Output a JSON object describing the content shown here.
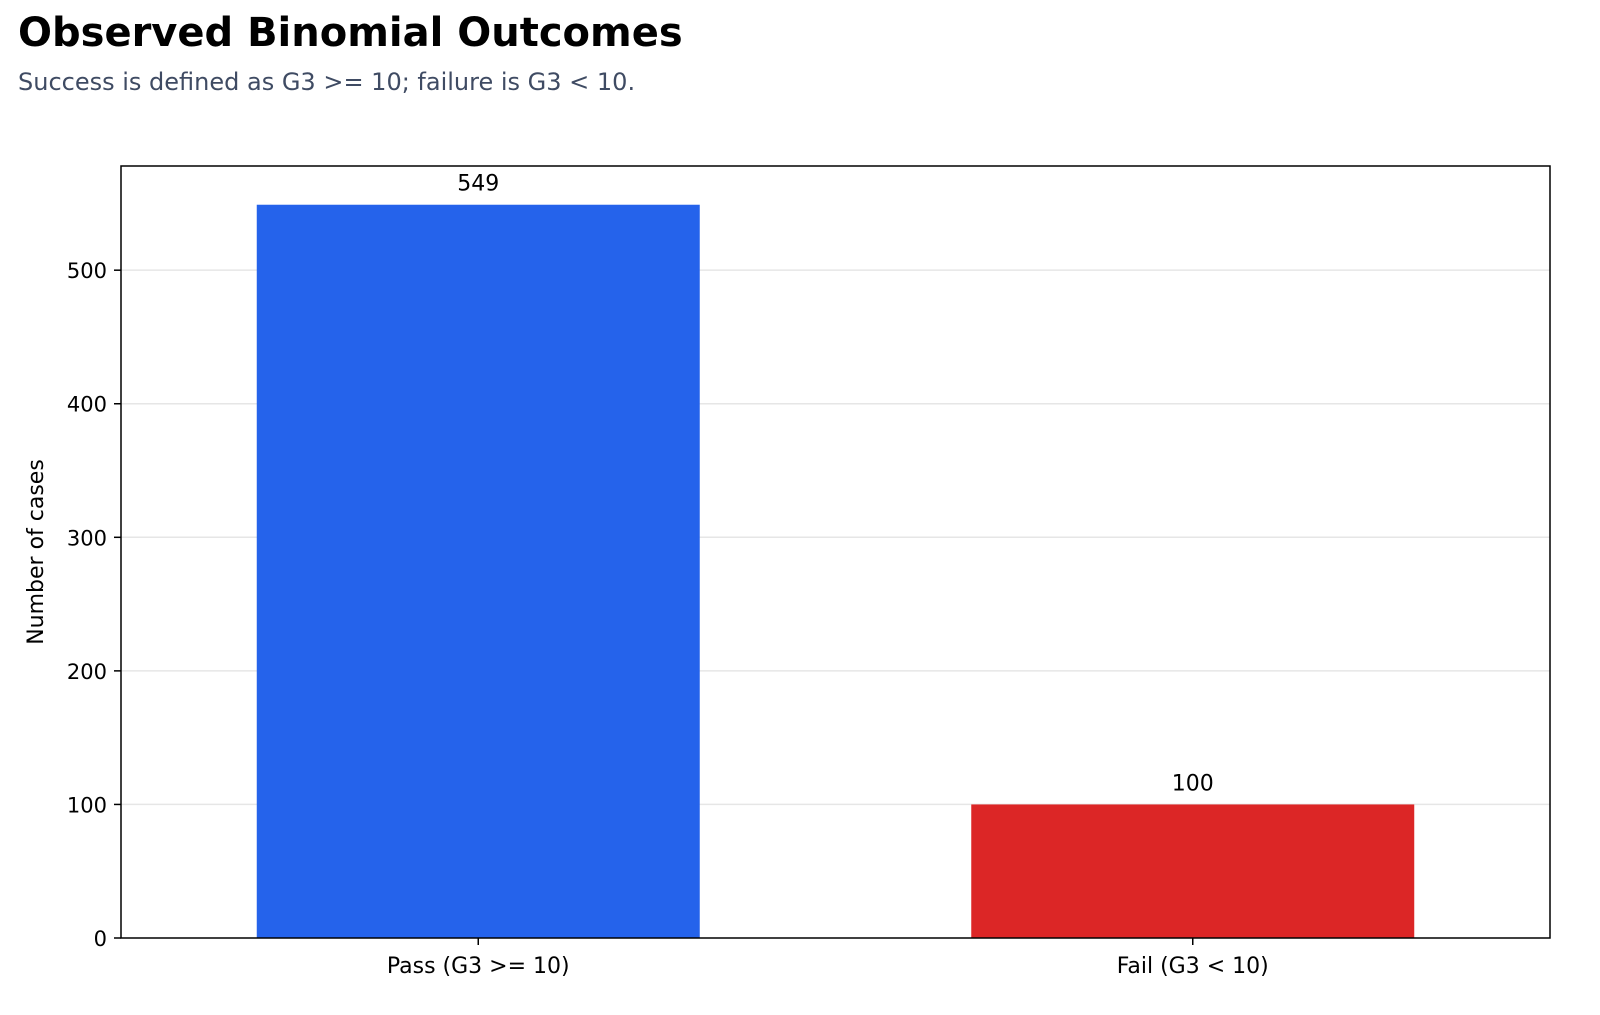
{
  "title": "Observed Binomial Outcomes",
  "subtitle": "Success is defined as G3 >= 10; failure is G3 < 10.",
  "chart_data": {
    "type": "bar",
    "title": "Observed Binomial Outcomes",
    "subtitle": "Success is defined as G3 >= 10; failure is G3 < 10.",
    "categories": [
      "Pass (G3 >= 10)",
      "Fail (G3 < 10)"
    ],
    "values": [
      549,
      100
    ],
    "data_labels": [
      "549",
      "100"
    ],
    "colors": [
      "#2563eb",
      "#dc2626"
    ],
    "xlabel": "",
    "ylabel": "Number of cases",
    "ylim": [
      0,
      578
    ],
    "yticks": [
      0,
      100,
      200,
      300,
      400,
      500
    ],
    "grid": "horizontal",
    "legend": "none"
  }
}
